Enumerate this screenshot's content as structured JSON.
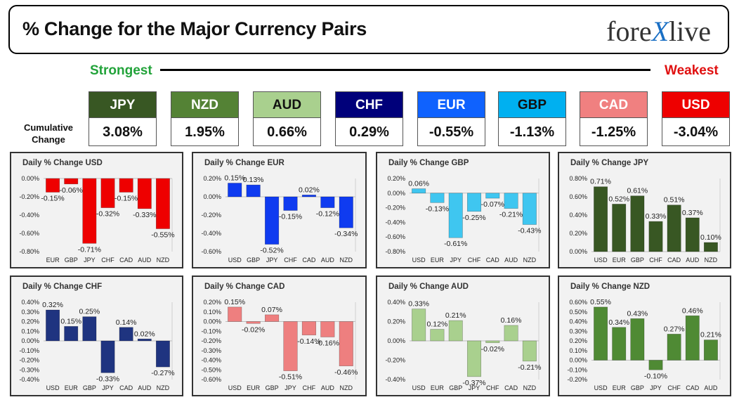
{
  "header": {
    "title": "% Change for the Major Currency Pairs",
    "logo_left": "fore",
    "logo_x": "X",
    "logo_right": "live"
  },
  "scale": {
    "strongest": "Strongest",
    "weakest": "Weakest"
  },
  "cumulative": {
    "label_line1": "Cumulative",
    "label_line2": "Change",
    "items": [
      {
        "name": "JPY",
        "value": "3.08%",
        "color": "#385723",
        "text": "#ffffff"
      },
      {
        "name": "NZD",
        "value": "1.95%",
        "color": "#548235",
        "text": "#ffffff"
      },
      {
        "name": "AUD",
        "value": "0.66%",
        "color": "#a9d08e",
        "text": "#111111"
      },
      {
        "name": "CHF",
        "value": "0.29%",
        "color": "#00007a",
        "text": "#ffffff"
      },
      {
        "name": "EUR",
        "value": "-0.55%",
        "color": "#0f62fe",
        "text": "#ffffff"
      },
      {
        "name": "GBP",
        "value": "-1.13%",
        "color": "#00b0f0",
        "text": "#111111"
      },
      {
        "name": "CAD",
        "value": "-1.25%",
        "color": "#f08080",
        "text": "#ffffff"
      },
      {
        "name": "USD",
        "value": "-3.04%",
        "color": "#ee0000",
        "text": "#ffffff"
      }
    ]
  },
  "chart_data": [
    {
      "type": "bar",
      "title": "Daily % Change USD",
      "categories": [
        "EUR",
        "GBP",
        "JPY",
        "CHF",
        "CAD",
        "AUD",
        "NZD"
      ],
      "values": [
        -0.15,
        -0.06,
        -0.71,
        -0.32,
        -0.15,
        -0.33,
        -0.55
      ],
      "labels": [
        "-0.15%",
        "-0.06%",
        "-0.71%",
        "-0.32%",
        "-0.15%",
        "-0.33%",
        "-0.55%"
      ],
      "yticks": [
        "0.00%",
        "-0.20%",
        "-0.40%",
        "-0.60%",
        "-0.80%"
      ],
      "ylim": [
        -0.8,
        0.0
      ],
      "color": "#ee0000"
    },
    {
      "type": "bar",
      "title": "Daily % Change EUR",
      "categories": [
        "USD",
        "GBP",
        "JPY",
        "CHF",
        "CAD",
        "AUD",
        "NZD"
      ],
      "values": [
        0.15,
        0.13,
        -0.52,
        -0.15,
        0.02,
        -0.12,
        -0.34
      ],
      "labels": [
        "0.15%",
        "0.13%",
        "-0.52%",
        "-0.15%",
        "0.02%",
        "-0.12%",
        "-0.34%"
      ],
      "yticks": [
        "0.20%",
        "0.00%",
        "-0.20%",
        "-0.40%",
        "-0.60%"
      ],
      "ylim": [
        -0.6,
        0.2
      ],
      "color": "#0f3bf0"
    },
    {
      "type": "bar",
      "title": "Daily % Change GBP",
      "categories": [
        "USD",
        "EUR",
        "JPY",
        "CHF",
        "CAD",
        "AUD",
        "NZD"
      ],
      "values": [
        0.06,
        -0.13,
        -0.61,
        -0.25,
        -0.07,
        -0.21,
        -0.43
      ],
      "labels": [
        "0.06%",
        "-0.13%",
        "-0.61%",
        "-0.25%",
        "-0.07%",
        "-0.21%",
        "-0.43%"
      ],
      "yticks": [
        "0.20%",
        "0.00%",
        "-0.20%",
        "-0.40%",
        "-0.60%",
        "-0.80%"
      ],
      "ylim": [
        -0.8,
        0.2
      ],
      "color": "#3fc6f0"
    },
    {
      "type": "bar",
      "title": "Daily % Change JPY",
      "categories": [
        "USD",
        "EUR",
        "GBP",
        "CHF",
        "CAD",
        "AUD",
        "NZD"
      ],
      "values": [
        0.71,
        0.52,
        0.61,
        0.33,
        0.51,
        0.37,
        0.1
      ],
      "labels": [
        "0.71%",
        "0.52%",
        "0.61%",
        "0.33%",
        "0.51%",
        "0.37%",
        "0.10%"
      ],
      "yticks": [
        "0.80%",
        "0.60%",
        "0.40%",
        "0.20%",
        "0.00%"
      ],
      "ylim": [
        0.0,
        0.8
      ],
      "color": "#385723"
    },
    {
      "type": "bar",
      "title": "Daily % Change CHF",
      "categories": [
        "USD",
        "EUR",
        "GBP",
        "JPY",
        "CAD",
        "AUD",
        "NZD"
      ],
      "values": [
        0.32,
        0.15,
        0.25,
        -0.33,
        0.14,
        0.02,
        -0.27
      ],
      "labels": [
        "0.32%",
        "0.15%",
        "0.25%",
        "-0.33%",
        "0.14%",
        "0.02%",
        "-0.27%"
      ],
      "yticks": [
        "0.40%",
        "0.30%",
        "0.20%",
        "0.10%",
        "0.00%",
        "-0.10%",
        "-0.20%",
        "-0.30%",
        "-0.40%"
      ],
      "ylim": [
        -0.4,
        0.4
      ],
      "color": "#1f3480"
    },
    {
      "type": "bar",
      "title": "Daily % Change CAD",
      "categories": [
        "USD",
        "EUR",
        "GBP",
        "JPY",
        "CHF",
        "AUD",
        "NZD"
      ],
      "values": [
        0.15,
        -0.02,
        0.07,
        -0.51,
        -0.14,
        -0.16,
        -0.46
      ],
      "labels": [
        "0.15%",
        "-0.02%",
        "0.07%",
        "-0.51%",
        "-0.14%",
        "-0.16%",
        "-0.46%"
      ],
      "yticks": [
        "0.20%",
        "0.10%",
        "0.00%",
        "-0.10%",
        "-0.20%",
        "-0.30%",
        "-0.40%",
        "-0.50%",
        "-0.60%"
      ],
      "ylim": [
        -0.6,
        0.2
      ],
      "color": "#ee7f7f"
    },
    {
      "type": "bar",
      "title": "Daily % Change AUD",
      "categories": [
        "USD",
        "EUR",
        "GBP",
        "JPY",
        "CHF",
        "CAD",
        "NZD"
      ],
      "values": [
        0.33,
        0.12,
        0.21,
        -0.37,
        -0.02,
        0.16,
        -0.21
      ],
      "labels": [
        "0.33%",
        "0.12%",
        "0.21%",
        "-0.37%",
        "-0.02%",
        "0.16%",
        "-0.21%"
      ],
      "yticks": [
        "0.40%",
        "0.20%",
        "0.00%",
        "-0.20%",
        "-0.40%"
      ],
      "ylim": [
        -0.4,
        0.4
      ],
      "color": "#a9d08e"
    },
    {
      "type": "bar",
      "title": "Daily % Change NZD",
      "categories": [
        "USD",
        "EUR",
        "GBP",
        "JPY",
        "CHF",
        "CAD",
        "AUD"
      ],
      "values": [
        0.55,
        0.34,
        0.43,
        -0.1,
        0.27,
        0.46,
        0.21
      ],
      "labels": [
        "0.55%",
        "0.34%",
        "0.43%",
        "-0.10%",
        "0.27%",
        "0.46%",
        "0.21%"
      ],
      "yticks": [
        "0.60%",
        "0.50%",
        "0.40%",
        "0.30%",
        "0.20%",
        "0.10%",
        "0.00%",
        "-0.10%",
        "-0.20%"
      ],
      "ylim": [
        -0.2,
        0.6
      ],
      "color": "#4f8a34"
    }
  ]
}
